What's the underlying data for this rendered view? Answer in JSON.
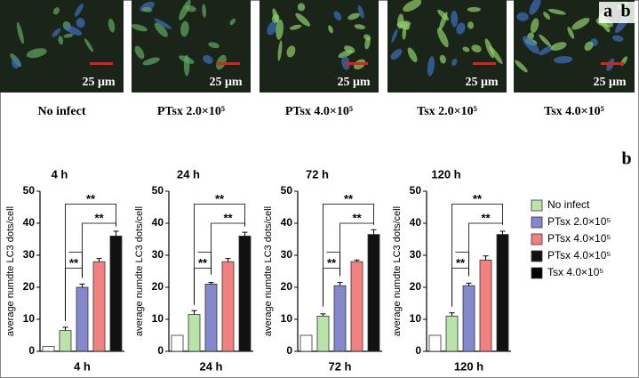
{
  "panel_labels": [
    "a",
    "b",
    "b"
  ],
  "images": [
    {
      "scale": "25 μm",
      "caption": "No infect"
    },
    {
      "scale": "25 μm",
      "caption": "PTsx 2.0×10⁵"
    },
    {
      "scale": "25 μm",
      "caption": "PTsx 4.0×10⁵"
    },
    {
      "scale": "25 μm",
      "caption": "Tsx 2.0×10⁵"
    },
    {
      "scale": "25 μm",
      "caption": "Tsx 4.0×10⁵"
    }
  ],
  "legend": [
    {
      "name": "No infect",
      "color": "#b9e3a9"
    },
    {
      "name": "PTsx 2.0×10⁵",
      "color": "#8389cc"
    },
    {
      "name": "PTsx 4.0×10⁵",
      "color": "#f2807f"
    },
    {
      "name": "PTsx 4.0×10⁵",
      "color": "#111111"
    },
    {
      "name": "Tsx 4.0×10⁵",
      "color": "#000000"
    }
  ],
  "chart_data": [
    {
      "type": "bar",
      "title": "4 h",
      "x_label": "4 h",
      "y_label": "average numdte LC3 dots/cell",
      "categories": [
        null,
        null,
        null,
        null,
        null
      ],
      "values": [
        1.5,
        6.5,
        20,
        28,
        36
      ],
      "errors": [
        0,
        1,
        1,
        1,
        1.5
      ],
      "colors": [
        "#ffffff",
        "#b9e3a9",
        "#8389cc",
        "#f2807f",
        "#111111"
      ],
      "ylim": [
        0,
        50
      ],
      "yticks": [
        0,
        10,
        20,
        30,
        40,
        50
      ],
      "annotations": [
        "**",
        "**",
        "**"
      ]
    },
    {
      "type": "bar",
      "title": "24 h",
      "x_label": "24 h",
      "y_label": "average numdte LC3 dots/cell",
      "categories": [
        null,
        null,
        null,
        null,
        null
      ],
      "values": [
        5,
        11.5,
        21,
        28,
        36
      ],
      "errors": [
        0,
        1.2,
        0.5,
        1,
        1.2
      ],
      "colors": [
        "#ffffff",
        "#b9e3a9",
        "#8389cc",
        "#f2807f",
        "#111111"
      ],
      "ylim": [
        0,
        50
      ],
      "yticks": [
        0,
        10,
        20,
        30,
        40,
        50
      ],
      "annotations": [
        "**",
        "**",
        "**"
      ]
    },
    {
      "type": "bar",
      "title": "72 h",
      "x_label": "72 h",
      "y_label": "average numdte LC3 dots/cell",
      "categories": [
        null,
        null,
        null,
        null,
        null
      ],
      "values": [
        5,
        11,
        20.5,
        28,
        36.5
      ],
      "errors": [
        0,
        0.7,
        1,
        0.5,
        1.5
      ],
      "colors": [
        "#ffffff",
        "#b9e3a9",
        "#8389cc",
        "#f2807f",
        "#111111"
      ],
      "ylim": [
        0,
        50
      ],
      "yticks": [
        0,
        10,
        20,
        30,
        40,
        50
      ],
      "annotations": [
        "**",
        "**",
        "**"
      ]
    },
    {
      "type": "bar",
      "title": "120 h",
      "x_label": "120 h",
      "y_label": "average numdte LC3 dots/cell",
      "categories": [
        null,
        null,
        null,
        null,
        null
      ],
      "values": [
        5,
        11,
        20.5,
        28.5,
        36.5
      ],
      "errors": [
        0,
        1,
        0.8,
        1.3,
        1
      ],
      "colors": [
        "#ffffff",
        "#b9e3a9",
        "#8389cc",
        "#f2807f",
        "#111111"
      ],
      "ylim": [
        0,
        50
      ],
      "yticks": [
        0,
        10,
        20,
        30,
        40,
        50
      ],
      "annotations": [
        "**",
        "**",
        "**"
      ]
    }
  ]
}
